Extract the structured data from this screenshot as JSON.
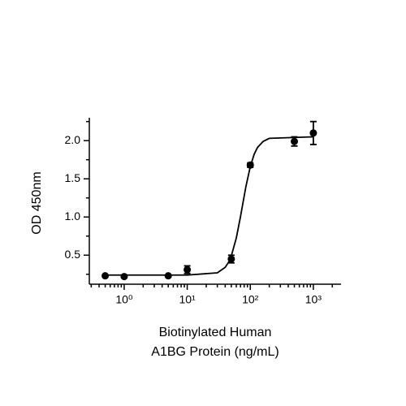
{
  "chart_data": {
    "type": "scatter",
    "x_label": [
      "Biotinylated Human",
      "A1BG Protein (ng/mL)"
    ],
    "y_label": "OD 450nm",
    "x": [
      0.5,
      1,
      5,
      10,
      50,
      100,
      500,
      1000
    ],
    "values": [
      0.23,
      0.22,
      0.23,
      0.31,
      0.45,
      1.68,
      1.99,
      2.1
    ],
    "errors": [
      0.01,
      0.01,
      0.01,
      0.05,
      0.05,
      0.03,
      0.06,
      0.15
    ],
    "curve": {
      "x": [
        0.5,
        10,
        30,
        40,
        45,
        50,
        60,
        70,
        75,
        85,
        100,
        115,
        130,
        160,
        200,
        1000
      ],
      "values": [
        0.24,
        0.24,
        0.269,
        0.341,
        0.405,
        0.49,
        0.725,
        1.006,
        1.145,
        1.394,
        1.66,
        1.82,
        1.91,
        1.99,
        2.03,
        2.05
      ]
    },
    "color": "#000000",
    "log_x": true,
    "xlim": [
      0.28,
      2750
    ],
    "ylim": [
      0.12,
      2.3
    ],
    "xticks": [
      {
        "value": 1,
        "label": "10⁰"
      },
      {
        "value": 10,
        "label": "10¹"
      },
      {
        "value": 100,
        "label": "10²"
      },
      {
        "value": 1000,
        "label": "10³"
      }
    ],
    "xminorticks": [
      0.3,
      0.4,
      0.5,
      0.6,
      0.7,
      0.8,
      0.9,
      2,
      3,
      4,
      5,
      6,
      7,
      8,
      9,
      20,
      30,
      40,
      50,
      60,
      70,
      80,
      90,
      200,
      300,
      400,
      500,
      600,
      700,
      800,
      900,
      2000
    ],
    "yticks": [
      0.5,
      {
        "value": 1,
        "label": "1.0"
      },
      1.5,
      {
        "value": 2,
        "label": "2.0"
      }
    ],
    "yminorticks": [
      0.25,
      0.75,
      1.25,
      1.75,
      2.25
    ],
    "grid": false
  }
}
